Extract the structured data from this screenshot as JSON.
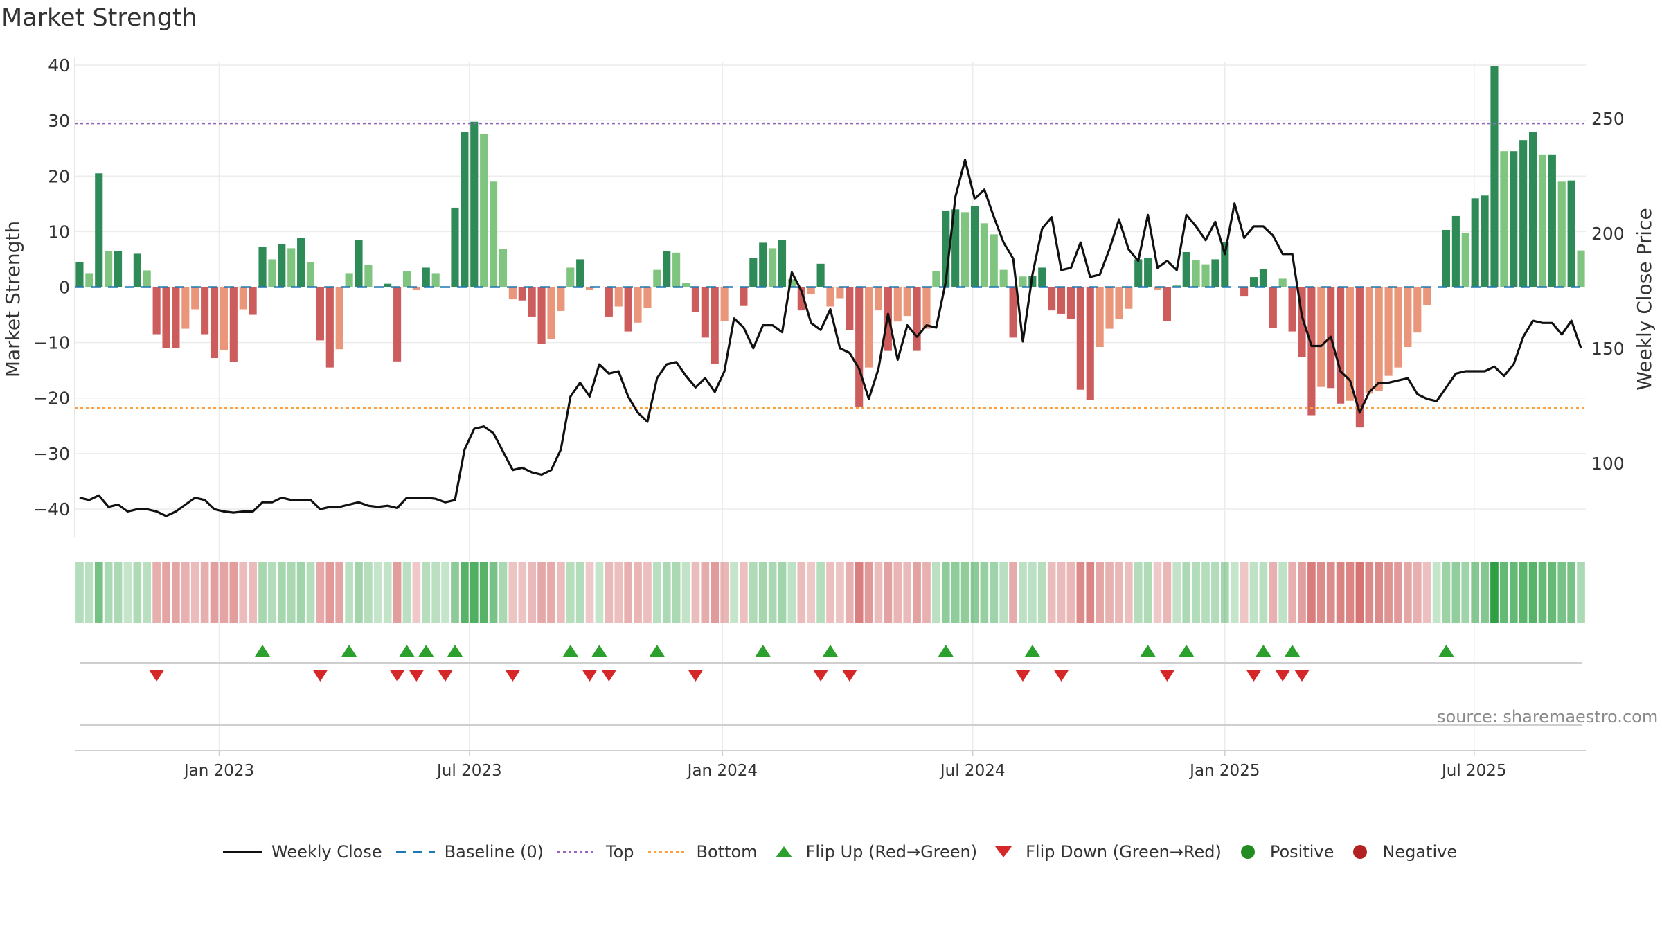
{
  "title": "Market Strength",
  "source": "source: sharemaestro.com",
  "legend": {
    "weekly_close": "Weekly Close",
    "baseline": "Baseline (0)",
    "top": "Top",
    "bottom": "Bottom",
    "flip_up": "Flip Up (Red→Green)",
    "flip_down": "Flip Down (Green→Red)",
    "positive": "Positive",
    "negative": "Negative"
  },
  "colors": {
    "pos_dark": "#2e8b57",
    "pos_light": "#7fc47f",
    "neg_dark": "#cd5c5c",
    "neg_light": "#e9967a",
    "close": "#111111",
    "baseline": "#1f77b4",
    "top": "#9467bd",
    "bottom": "#ffa040",
    "flip_up": "#2ca02c",
    "flip_down": "#d62728",
    "positive": "#228b22",
    "negative": "#b22222"
  },
  "chart_data": {
    "type": "bar+line",
    "title": "Market Strength",
    "ylabel": "Market Strength",
    "y2label": "Weekly Close Price",
    "ylim": [
      -45,
      42
    ],
    "y2lim": [
      68,
      278
    ],
    "yticks": [
      -40,
      -30,
      -20,
      -10,
      0,
      10,
      20,
      30,
      40
    ],
    "yticklabels": [
      "−40",
      "−30",
      "−20",
      "−10",
      "0",
      "10",
      "20",
      "30",
      "40"
    ],
    "y2ticks": [
      100,
      150,
      200,
      250
    ],
    "xlim": [
      0,
      157
    ],
    "xticks": [
      {
        "label": "Jan 2023",
        "week": 15
      },
      {
        "label": "Jul 2023",
        "week": 41
      },
      {
        "label": "Jan 2024",
        "week": 67.3
      },
      {
        "label": "Jul 2024",
        "week": 93.3
      },
      {
        "label": "Jan 2025",
        "week": 119.5
      },
      {
        "label": "Jul 2025",
        "week": 145.4
      }
    ],
    "top_line": 29.5,
    "bottom_line": -21.8,
    "strength": [
      4.5,
      2.5,
      20.5,
      6.5,
      6.5,
      0,
      6,
      3,
      -8.5,
      -11,
      -11,
      -7.5,
      -4,
      -8.5,
      -12.8,
      -11.3,
      -13.5,
      -4,
      -5,
      7.2,
      5,
      7.8,
      7,
      8.8,
      4.5,
      -9.6,
      -14.5,
      -11.2,
      2.5,
      8.5,
      4,
      0,
      0.6,
      -13.4,
      2.8,
      -0.5,
      3.5,
      2.5,
      0,
      14.3,
      28,
      29.8,
      27.6,
      19,
      6.8,
      -2.2,
      -2.4,
      -5.3,
      -10.2,
      -9.4,
      -4.3,
      3.5,
      5,
      -0.5,
      0,
      -5.3,
      -3.5,
      -8,
      -6.4,
      -3.8,
      3.1,
      6.5,
      6.2,
      0.7,
      -4.5,
      -9.1,
      -13.8,
      -6.1,
      0,
      -3.4,
      5.2,
      8,
      7,
      8.5,
      1.4,
      -4.2,
      -1.3,
      4.2,
      -3.5,
      -2,
      -7.8,
      -21.6,
      -14.5,
      -4.2,
      -11.5,
      -6.2,
      -5.2,
      -11.5,
      -7.5,
      2.9,
      13.8,
      14,
      13.5,
      14.6,
      11.5,
      9.5,
      3.1,
      -9.1,
      1.9,
      2,
      3.5,
      -4.2,
      -4.8,
      -5.8,
      -18.5,
      -20.3,
      -10.8,
      -7.5,
      -5.8,
      -3.9,
      5,
      5.3,
      -0.5,
      -6.1,
      0.4,
      6.3,
      4.8,
      4.1,
      5,
      8.1,
      0,
      -1.7,
      1.8,
      3.2,
      -7.4,
      1.5,
      -8,
      -12.6,
      -23.1,
      -18,
      -18.2,
      -21,
      -20.5,
      -25.3,
      -19.2,
      -18.7,
      -16,
      -14.5,
      -10.8,
      -8.2,
      -3.3,
      0,
      10.3,
      12.8,
      9.8,
      16,
      16.5,
      39.8,
      24.5,
      24.5,
      26.5,
      28,
      23.8,
      23.8,
      19,
      19.2,
      6.6
    ],
    "close": [
      85,
      84,
      86,
      81,
      82,
      79,
      80,
      80,
      79,
      77,
      79,
      82,
      85,
      84,
      80,
      79,
      78.5,
      79,
      79,
      83,
      83,
      85,
      84,
      84,
      84,
      80,
      81,
      81,
      82,
      83,
      81.5,
      81,
      81.5,
      80.5,
      85,
      85,
      85,
      84.5,
      83,
      84,
      106,
      115,
      116,
      113,
      105,
      97,
      98,
      96,
      95,
      97,
      106,
      129,
      135,
      129,
      143,
      139,
      140,
      129,
      122,
      118,
      137,
      143,
      144,
      138,
      133,
      137,
      131,
      140,
      163,
      159,
      150,
      160,
      160,
      157,
      183,
      175,
      161,
      158,
      167,
      150,
      148,
      141,
      128,
      141,
      165,
      145,
      160,
      155,
      160,
      159,
      179,
      216,
      232,
      215,
      219,
      207,
      196,
      189,
      153,
      182,
      202,
      207,
      184,
      185,
      196,
      181,
      182,
      193,
      206,
      193,
      188,
      208,
      185,
      188,
      184,
      208,
      203,
      197,
      205,
      191,
      213,
      198,
      203,
      203,
      199,
      191,
      191,
      164,
      151,
      151,
      155,
      140,
      136,
      122,
      131,
      135,
      135,
      136,
      137,
      130,
      128,
      127,
      133,
      139,
      140,
      140,
      140,
      142,
      138,
      143,
      155,
      162,
      161,
      161,
      156,
      162,
      150
    ],
    "flip_up_weeks": [
      19,
      28,
      34,
      36,
      39,
      51,
      54,
      60,
      71,
      78,
      90,
      99,
      111,
      115,
      123,
      126,
      142
    ],
    "flip_down_weeks": [
      8,
      25,
      33,
      35,
      38,
      45,
      53,
      55,
      64,
      77,
      80,
      98,
      102,
      113,
      122,
      125,
      127
    ]
  }
}
